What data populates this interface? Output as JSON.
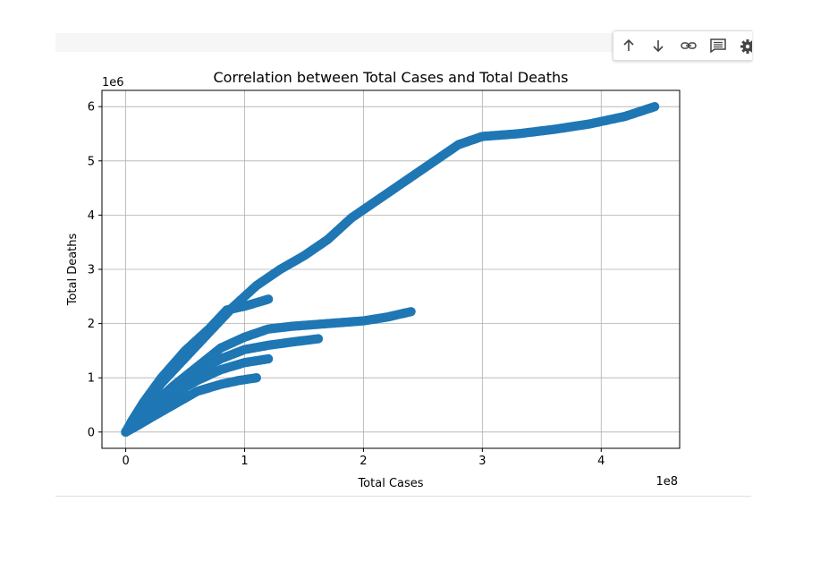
{
  "toolbar": {
    "icons": [
      "arrow-up-icon",
      "arrow-down-icon",
      "link-icon",
      "comment-icon",
      "gear-icon"
    ]
  },
  "chart_data": {
    "type": "scatter",
    "title": "Correlation between Total Cases and Total Deaths",
    "xlabel": "Total Cases",
    "ylabel": "Total Deaths",
    "x_offset_text": "1e8",
    "y_offset_text": "1e6",
    "xlim": [
      -20000000,
      466000000
    ],
    "ylim": [
      -300000,
      6300000
    ],
    "xticks": [
      0,
      100000000,
      200000000,
      300000000,
      400000000
    ],
    "xtick_labels": [
      "0",
      "1",
      "2",
      "3",
      "4"
    ],
    "yticks": [
      0,
      1000000,
      2000000,
      3000000,
      4000000,
      5000000,
      6000000
    ],
    "ytick_labels": [
      "0",
      "1",
      "2",
      "3",
      "4",
      "5",
      "6"
    ],
    "grid": true,
    "color": "#1f77b4",
    "series": [
      {
        "x": [
          0,
          5000000,
          15000000,
          30000000,
          50000000,
          70000000,
          85000000,
          100000000,
          120000000
        ],
        "y": [
          0,
          200000,
          550000,
          1000000,
          1500000,
          1900000,
          2250000,
          2320000,
          2450000
        ]
      },
      {
        "x": [
          0,
          10000000,
          30000000,
          60000000,
          90000000,
          110000000,
          130000000,
          150000000,
          170000000,
          190000000,
          210000000,
          230000000,
          260000000,
          280000000,
          300000000,
          330000000,
          360000000,
          390000000,
          420000000,
          445000000
        ],
        "y": [
          0,
          300000,
          900000,
          1600000,
          2300000,
          2700000,
          3000000,
          3250000,
          3550000,
          3950000,
          4250000,
          4550000,
          5000000,
          5300000,
          5450000,
          5500000,
          5580000,
          5680000,
          5820000,
          6000000
        ]
      },
      {
        "x": [
          0,
          20000000,
          40000000,
          60000000,
          80000000,
          100000000,
          120000000,
          140000000,
          170000000,
          200000000,
          220000000,
          240000000
        ],
        "y": [
          0,
          450000,
          850000,
          1200000,
          1550000,
          1750000,
          1900000,
          1950000,
          2000000,
          2050000,
          2120000,
          2220000
        ]
      },
      {
        "x": [
          0,
          20000000,
          40000000,
          60000000,
          80000000,
          100000000,
          120000000,
          140000000,
          162000000
        ],
        "y": [
          0,
          400000,
          800000,
          1100000,
          1350000,
          1520000,
          1600000,
          1660000,
          1720000
        ]
      },
      {
        "x": [
          0,
          20000000,
          40000000,
          60000000,
          80000000,
          100000000,
          120000000
        ],
        "y": [
          0,
          350000,
          700000,
          950000,
          1150000,
          1280000,
          1350000
        ]
      },
      {
        "x": [
          0,
          20000000,
          40000000,
          60000000,
          80000000,
          95000000,
          110000000
        ],
        "y": [
          0,
          250000,
          500000,
          750000,
          880000,
          950000,
          1000000
        ]
      },
      {
        "x": [
          0,
          10000000,
          20000000,
          30000000,
          40000000,
          50000000,
          60000000,
          70000000
        ],
        "y": [
          0,
          160000,
          330000,
          520000,
          700000,
          840000,
          950000,
          1050000
        ]
      },
      {
        "x": [
          0,
          8000000,
          16000000,
          25000000,
          35000000,
          45000000
        ],
        "y": [
          0,
          150000,
          300000,
          500000,
          700000,
          850000
        ]
      },
      {
        "x": [
          0,
          5000000,
          12000000,
          20000000,
          28000000
        ],
        "y": [
          0,
          150000,
          300000,
          450000,
          600000
        ]
      },
      {
        "x": [
          0,
          10000000,
          20000000,
          30000000,
          40000000,
          50000000
        ],
        "y": [
          0,
          120000,
          250000,
          400000,
          550000,
          700000
        ]
      }
    ]
  }
}
